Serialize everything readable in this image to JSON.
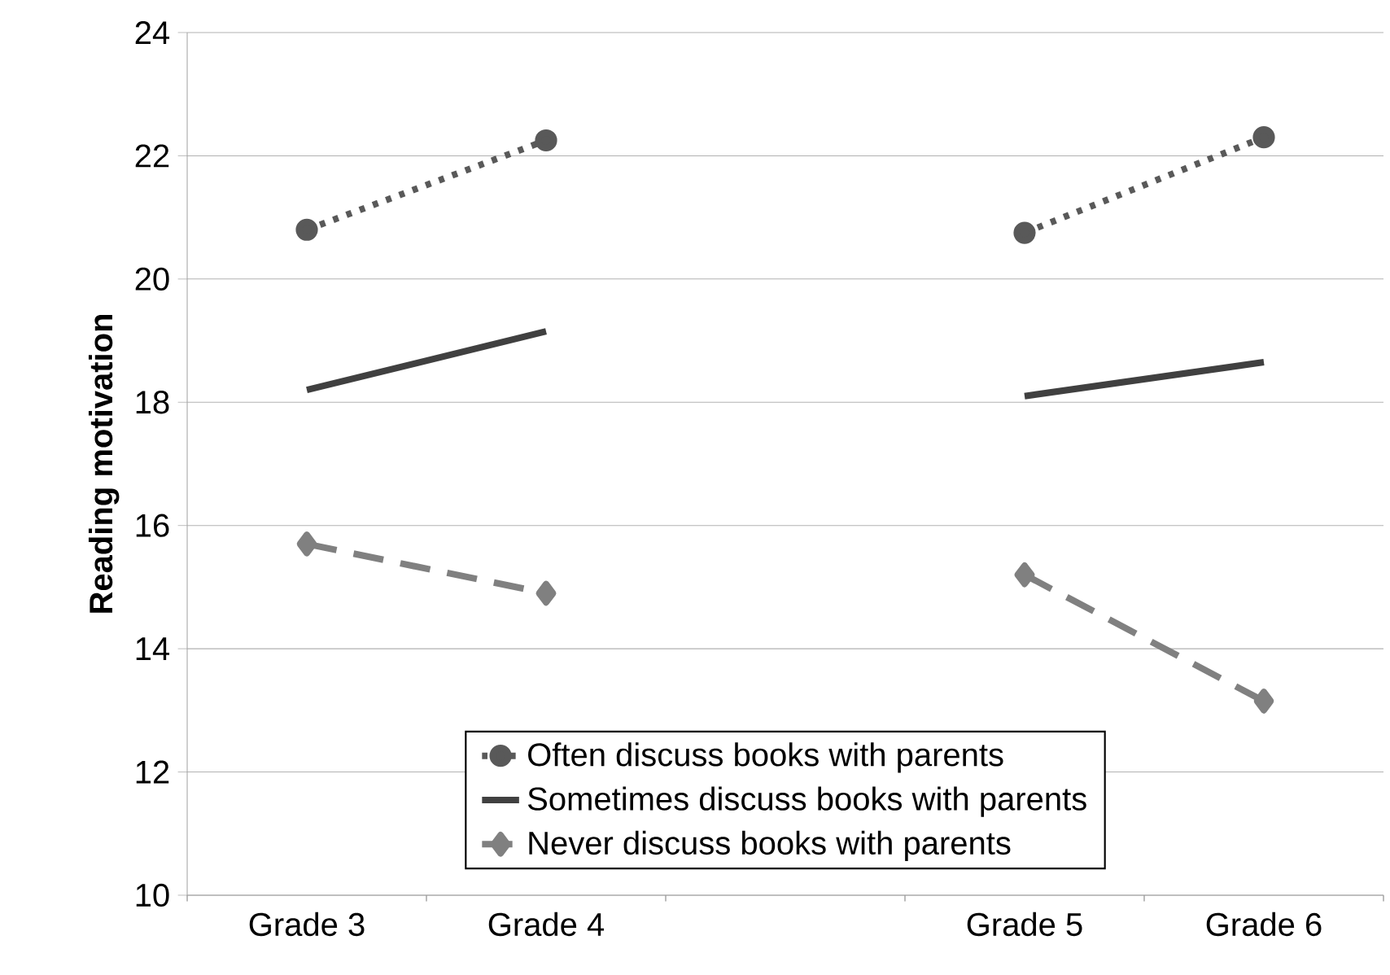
{
  "chart_data": {
    "type": "line",
    "ylabel": "Reading motivation",
    "categories": [
      "Grade 3",
      "Grade 4",
      null,
      "Grade 5",
      "Grade 6"
    ],
    "ylim": [
      10,
      24
    ],
    "yticks": [
      10,
      12,
      14,
      16,
      18,
      20,
      22,
      24
    ],
    "grid": "y",
    "legend": "bottom",
    "series": [
      {
        "name": "Often discuss books with parents",
        "color": "#595959",
        "marker": "circle",
        "line_style": "dotted",
        "values": [
          20.8,
          22.25,
          null,
          20.75,
          22.3
        ]
      },
      {
        "name": "Sometimes discuss books with parents",
        "color": "#404040",
        "marker": "none",
        "line_style": "solid",
        "values": [
          18.2,
          19.15,
          null,
          18.1,
          18.65
        ]
      },
      {
        "name": "Never discuss books with parents",
        "color": "#808080",
        "marker": "diamond",
        "line_style": "dashed",
        "values": [
          15.7,
          14.9,
          null,
          15.2,
          13.15
        ]
      }
    ]
  }
}
